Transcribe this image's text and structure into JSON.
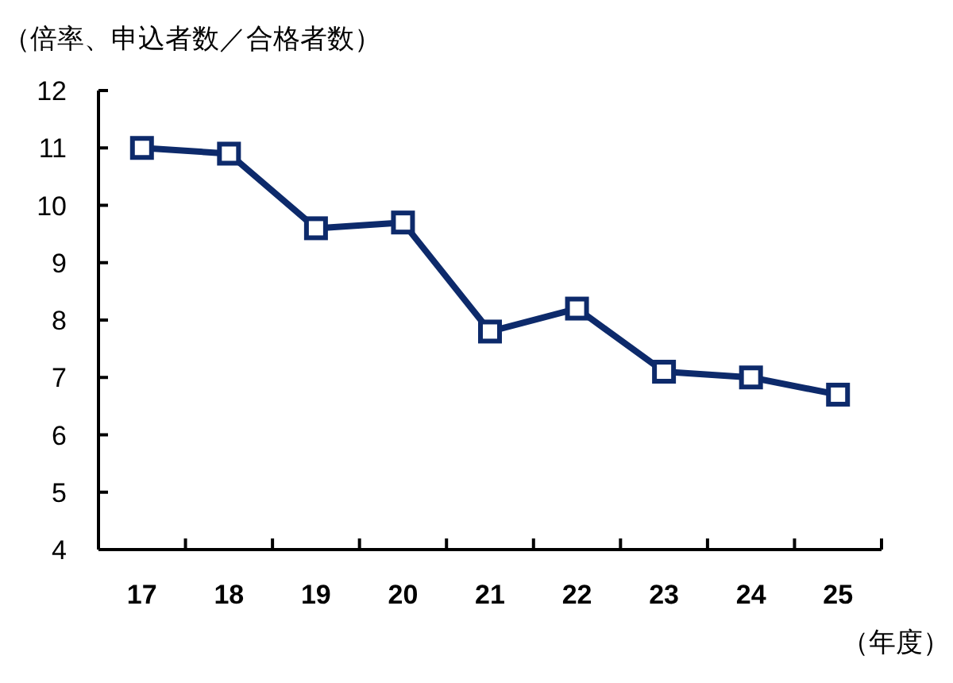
{
  "chart_data": {
    "type": "line",
    "ylabel": "（倍率、申込者数／合格者数）",
    "xlabel": "（年度）",
    "categories": [
      "17",
      "18",
      "19",
      "20",
      "21",
      "22",
      "23",
      "24",
      "25"
    ],
    "series": [
      {
        "color": "#0d2a6b",
        "values": [
          11.0,
          10.9,
          9.6,
          9.7,
          7.8,
          8.2,
          7.1,
          7.0,
          6.7
        ]
      }
    ],
    "ylim": [
      4,
      12
    ],
    "yticks": [
      4,
      5,
      6,
      7,
      8,
      9,
      10,
      11,
      12
    ],
    "grid": false,
    "marker": "square",
    "line_style": "solid"
  }
}
